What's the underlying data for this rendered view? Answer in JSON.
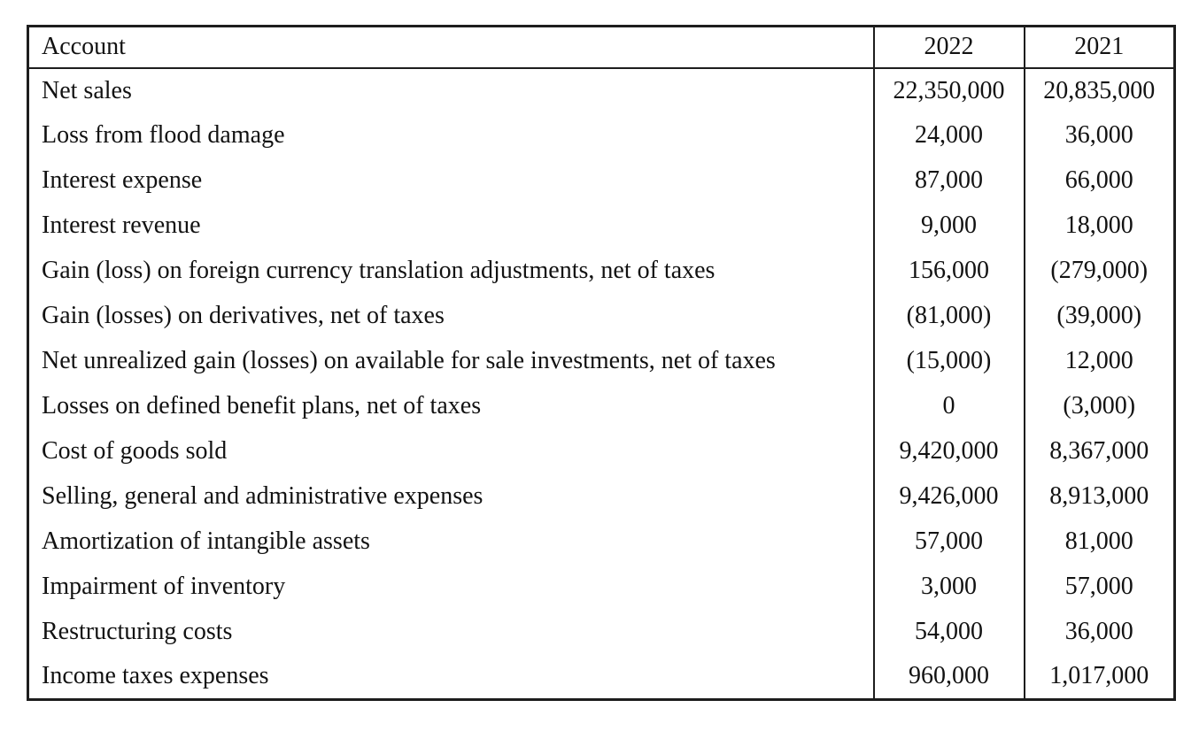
{
  "colors": {
    "ink": "#121212",
    "line": "#1d1d1d",
    "background": "#ffffff"
  },
  "table": {
    "columns": [
      "Account",
      "2022",
      "2021"
    ],
    "rows": [
      {
        "account": "Net sales",
        "y2022": "22,350,000",
        "y2021": "20,835,000"
      },
      {
        "account": "Loss from flood damage",
        "y2022": "24,000",
        "y2021": "36,000"
      },
      {
        "account": "Interest expense",
        "y2022": "87,000",
        "y2021": "66,000"
      },
      {
        "account": "Interest revenue",
        "y2022": "9,000",
        "y2021": "18,000"
      },
      {
        "account": "Gain (loss) on foreign currency translation adjustments, net of taxes",
        "y2022": "156,000",
        "y2021": "(279,000)"
      },
      {
        "account": "Gain (losses) on derivatives, net of taxes",
        "y2022": "(81,000)",
        "y2021": "(39,000)"
      },
      {
        "account": "Net unrealized gain (losses) on available for sale investments, net of taxes",
        "y2022": "(15,000)",
        "y2021": "12,000"
      },
      {
        "account": "Losses on defined benefit plans, net of taxes",
        "y2022": "0",
        "y2021": "(3,000)"
      },
      {
        "account": "Cost of goods sold",
        "y2022": "9,420,000",
        "y2021": "8,367,000"
      },
      {
        "account": "Selling, general and administrative expenses",
        "y2022": "9,426,000",
        "y2021": "8,913,000"
      },
      {
        "account": "Amortization of intangible assets",
        "y2022": "57,000",
        "y2021": "81,000"
      },
      {
        "account": "Impairment of inventory",
        "y2022": "3,000",
        "y2021": "57,000"
      },
      {
        "account": "Restructuring costs",
        "y2022": "54,000",
        "y2021": "36,000"
      },
      {
        "account": "Income taxes expenses",
        "y2022": "960,000",
        "y2021": "1,017,000"
      }
    ]
  }
}
